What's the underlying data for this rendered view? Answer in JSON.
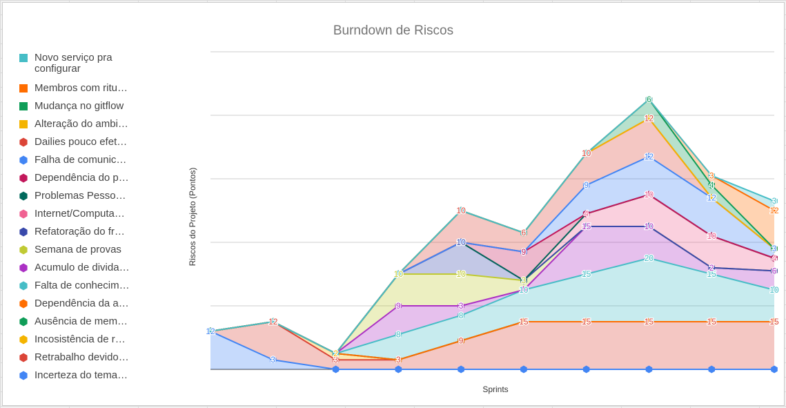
{
  "chart_data": {
    "type": "area",
    "stacked": true,
    "title": "Burndown de Riscos",
    "xlabel": "Sprints",
    "ylabel": "Riscos do Projeto (Pontos)",
    "ylim": [
      0,
      100
    ],
    "grid": true,
    "legend_position": "left",
    "x": [
      "1",
      "2",
      "3",
      "4",
      "5",
      "6",
      "7",
      "8",
      "9",
      "10"
    ],
    "series": [
      {
        "name": "Incerteza do tema",
        "color": "#4285f4",
        "values": [
          12,
          3,
          0,
          0,
          0,
          0,
          0,
          0,
          0,
          0
        ]
      },
      {
        "name": "Retrabalho devido",
        "color": "#db4437",
        "values": [
          0,
          12,
          3,
          3,
          9,
          15,
          15,
          15,
          15,
          15
        ]
      },
      {
        "name": "Incosistência de r",
        "color": "#f4b400",
        "values": [
          0,
          0,
          2,
          0,
          0,
          0,
          0,
          0,
          0,
          0
        ]
      },
      {
        "name": "Ausência de mem",
        "color": "#0f9d58",
        "values": [
          0,
          0,
          0,
          0,
          0,
          0,
          0,
          0,
          0,
          0
        ]
      },
      {
        "name": "Dependência da a",
        "color": "#ff6d00",
        "values": [
          0,
          0,
          0,
          0,
          0,
          0,
          0,
          0,
          0,
          0
        ]
      },
      {
        "name": "Falta de conhecim",
        "color": "#46bdc6",
        "values": [
          0,
          0,
          0,
          8,
          8,
          10,
          15,
          20,
          15,
          10
        ]
      },
      {
        "name": "Acumulo de divida",
        "color": "#ab30c4",
        "values": [
          0,
          0,
          0,
          9,
          3,
          0,
          15,
          10,
          2,
          6
        ]
      },
      {
        "name": "Semana de provas",
        "color": "#c0ca33",
        "values": [
          0,
          0,
          0,
          10,
          10,
          3,
          0,
          0,
          0,
          0
        ]
      },
      {
        "name": "Refatoração do fr",
        "color": "#3949ab",
        "values": [
          0,
          0,
          0,
          0,
          10,
          0,
          0,
          0,
          0,
          0
        ]
      },
      {
        "name": "Internet/Computa",
        "color": "#f06292",
        "values": [
          0,
          0,
          0,
          0,
          0,
          0,
          4,
          10,
          10,
          4
        ]
      },
      {
        "name": "Problemas Pesso",
        "color": "#00695c",
        "values": [
          0,
          0,
          0,
          0,
          0,
          0,
          0,
          0,
          0,
          0
        ]
      },
      {
        "name": "Dependência do p",
        "color": "#c2185b",
        "values": [
          0,
          0,
          0,
          0,
          0,
          9,
          0,
          0,
          0,
          0
        ]
      },
      {
        "name": "Falha de comunic",
        "color": "#4285f4",
        "values": [
          0,
          0,
          0,
          0,
          0,
          0,
          9,
          12,
          12,
          3
        ]
      },
      {
        "name": "Dailies pouco efet",
        "color": "#db4437",
        "values": [
          0,
          0,
          0,
          0,
          10,
          6,
          10,
          12,
          0,
          0
        ]
      },
      {
        "name": "Alteração do ambi",
        "color": "#f4b400",
        "values": [
          0,
          0,
          0,
          0,
          0,
          0,
          0,
          0,
          0,
          0
        ]
      },
      {
        "name": "Mudança no gitflow",
        "color": "#0f9d58",
        "values": [
          0,
          0,
          0,
          0,
          0,
          0,
          0,
          6,
          4,
          0
        ]
      },
      {
        "name": "Membros com ritu",
        "color": "#ff6d00",
        "values": [
          0,
          0,
          0,
          0,
          0,
          0,
          0,
          0,
          3,
          12
        ]
      },
      {
        "name": "Novo serviço pra configurar",
        "color": "#46bdc6",
        "values": [
          0,
          0,
          0,
          0,
          0,
          0,
          0,
          0,
          0,
          3
        ]
      }
    ]
  },
  "legend": [
    {
      "label": "Novo serviço pra configurar",
      "color": "#46bdc6",
      "shape": "square"
    },
    {
      "label": "Membros com ritu…",
      "color": "#ff6d00",
      "shape": "square"
    },
    {
      "label": "Mudança no gitflow",
      "color": "#0f9d58",
      "shape": "square"
    },
    {
      "label": "Alteração do ambi…",
      "color": "#f4b400",
      "shape": "square"
    },
    {
      "label": "Dailies pouco efet…",
      "color": "#db4437",
      "shape": "hexagon"
    },
    {
      "label": "Falha de comunic…",
      "color": "#4285f4",
      "shape": "hexagon"
    },
    {
      "label": "Dependência do p…",
      "color": "#c2185b",
      "shape": "hexagon"
    },
    {
      "label": "Problemas Pesso…",
      "color": "#00695c",
      "shape": "hexagon"
    },
    {
      "label": "Internet/Computa…",
      "color": "#f06292",
      "shape": "hexagon"
    },
    {
      "label": "Refatoração do fr…",
      "color": "#3949ab",
      "shape": "hexagon"
    },
    {
      "label": "Semana de provas",
      "color": "#c0ca33",
      "shape": "hexagon"
    },
    {
      "label": "Acumulo de divida…",
      "color": "#ab30c4",
      "shape": "hexagon"
    },
    {
      "label": "Falta de conhecim…",
      "color": "#46bdc6",
      "shape": "hexagon"
    },
    {
      "label": "Dependência da a…",
      "color": "#ff6d00",
      "shape": "hexagon"
    },
    {
      "label": "Ausência de mem…",
      "color": "#0f9d58",
      "shape": "hexagon"
    },
    {
      "label": "Incosistência de r…",
      "color": "#f4b400",
      "shape": "hexagon"
    },
    {
      "label": "Retrabalho devido…",
      "color": "#db4437",
      "shape": "hexagon"
    },
    {
      "label": "Incerteza do tema…",
      "color": "#4285f4",
      "shape": "hexagon"
    }
  ]
}
